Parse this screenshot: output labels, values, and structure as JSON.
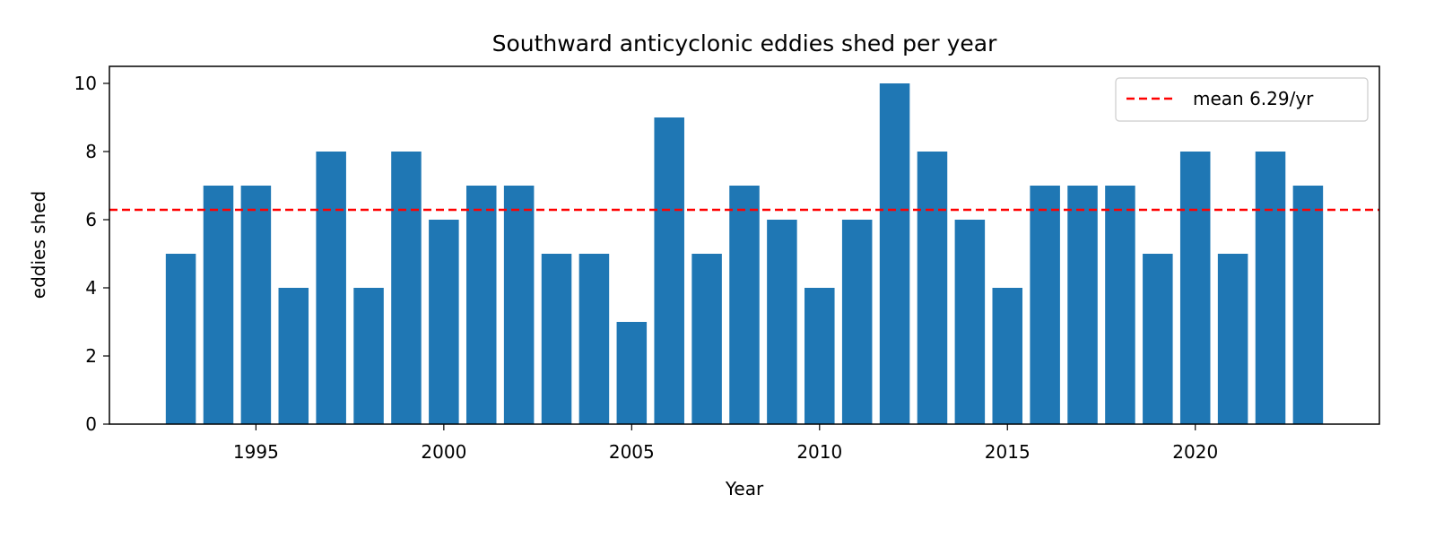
{
  "chart_data": {
    "type": "bar",
    "title": "Southward anticyclonic eddies shed per year",
    "xlabel": "Year",
    "ylabel": "eddies shed",
    "x": [
      1993,
      1994,
      1995,
      1996,
      1997,
      1998,
      1999,
      2000,
      2001,
      2002,
      2003,
      2004,
      2005,
      2006,
      2007,
      2008,
      2009,
      2010,
      2011,
      2012,
      2013,
      2014,
      2015,
      2016,
      2017,
      2018,
      2019,
      2020,
      2021,
      2022,
      2023
    ],
    "values": [
      5,
      7,
      7,
      4,
      8,
      4,
      8,
      6,
      7,
      7,
      5,
      5,
      3,
      9,
      5,
      7,
      6,
      4,
      6,
      10,
      8,
      6,
      4,
      7,
      7,
      7,
      5,
      8,
      5,
      8,
      7
    ],
    "xlim": [
      1991.1,
      1925
    ],
    "ylim": [
      0,
      10.5
    ],
    "xticks": [
      1995,
      2000,
      2005,
      2010,
      2015,
      2020
    ],
    "yticks": [
      0,
      2,
      4,
      6,
      8,
      10
    ],
    "bar_color": "#1f77b4",
    "reference_line": {
      "value": 6.29,
      "label": "mean 6.29/yr",
      "color": "#ff0000",
      "style": "dashed"
    },
    "legend_position": "top-right",
    "grid": false
  }
}
